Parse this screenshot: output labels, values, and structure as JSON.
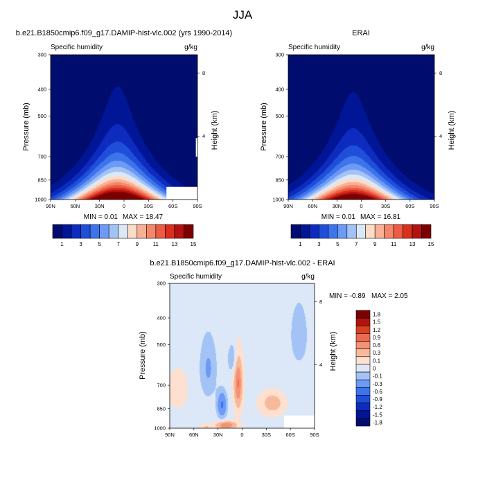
{
  "figure": {
    "title": "JJA",
    "tick_labels": {
      "lat": [
        "90N",
        "60N",
        "30N",
        "0",
        "30S",
        "60S",
        "90S"
      ],
      "pressure": [
        "300",
        "400",
        "500",
        "700",
        "850",
        "1000"
      ],
      "height": [
        "8",
        "4"
      ]
    },
    "colors": {
      "seq_colorbar": [
        "#000c6e",
        "#001696",
        "#0d2bbe",
        "#1f4fd9",
        "#3d74ec",
        "#6c9af4",
        "#a3c3f7",
        "#dce8f7",
        "#fbdcc8",
        "#f8b196",
        "#f4876a",
        "#ec5c42",
        "#d9301e",
        "#b21310",
        "#7d0000"
      ],
      "div_colorbar": [
        "#000c6e",
        "#001696",
        "#0d2bbe",
        "#1f4fd9",
        "#3d74ec",
        "#6c9af4",
        "#a3c3f7",
        "#dce8f7",
        "#fde0cf",
        "#f8b99b",
        "#f49176",
        "#ec6a4e",
        "#d9401f",
        "#b21310",
        "#7d0000"
      ]
    }
  },
  "chart_data": [
    {
      "type": "heatmap",
      "name": "model",
      "title": "b.e21.B1850cmip6.f09_g17.DAMIP-hist-vlc.002 (yrs 1990-2014)",
      "variable": "Specific humidity",
      "units": "g/kg",
      "xlabel": "",
      "ylabel": "Pressure (mb)",
      "y2label": "Height (km)",
      "xlim": [
        90,
        -90
      ],
      "ylim": [
        1000,
        300
      ],
      "min_label": "MIN =   0.01",
      "max_label": "MAX =  18.47",
      "min": 0.01,
      "max": 18.47,
      "peak_lat": 8,
      "peak_value": 18.47,
      "missing": [
        {
          "lat": [
            -52,
            -90
          ],
          "p": [
            1000,
            900
          ]
        },
        {
          "lat": [
            -88,
            -90
          ],
          "p": [
            700,
            600
          ]
        }
      ],
      "colorbar_labels": [
        "1",
        "3",
        "5",
        "7",
        "9",
        "11",
        "13",
        "15"
      ],
      "colorbar_levels": [
        1,
        2,
        3,
        4,
        5,
        6,
        7,
        8,
        9,
        10,
        11,
        12,
        13,
        14,
        15
      ]
    },
    {
      "type": "heatmap",
      "name": "obs",
      "title": "ERAI",
      "variable": "Specific humidity",
      "units": "g/kg",
      "xlabel": "",
      "ylabel": "Pressure (mb)",
      "y2label": "Height (km)",
      "xlim": [
        90,
        -90
      ],
      "ylim": [
        1000,
        300
      ],
      "min_label": "MIN =   0.01",
      "max_label": "MAX =  16.81",
      "min": 0.01,
      "max": 16.81,
      "peak_lat": 10,
      "peak_value": 16.81,
      "missing": [],
      "colorbar_labels": [
        "1",
        "3",
        "5",
        "7",
        "9",
        "11",
        "13",
        "15"
      ],
      "colorbar_levels": [
        1,
        2,
        3,
        4,
        5,
        6,
        7,
        8,
        9,
        10,
        11,
        12,
        13,
        14,
        15
      ]
    },
    {
      "type": "heatmap",
      "name": "diff",
      "title": "b.e21.B1850cmip6.f09_g17.DAMIP-hist-vlc.002 - ERAI",
      "variable": "Specific humidity",
      "units": "g/kg",
      "xlabel": "",
      "ylabel": "Pressure (mb)",
      "y2label": "Height (km)",
      "xlim": [
        90,
        -90
      ],
      "ylim": [
        1000,
        300
      ],
      "min_label": "MIN =  -0.89",
      "max_label": "MAX =   2.05",
      "min": -0.89,
      "max": 2.05,
      "missing": [
        {
          "lat": [
            -52,
            -90
          ],
          "p": [
            1000,
            900
          ]
        }
      ],
      "colorbar_labels": [
        "1.8",
        "1.5",
        "1.2",
        "0.9",
        "0.6",
        "0.3",
        "0.1",
        "0",
        "-0.1",
        "-0.3",
        "-0.6",
        "-0.9",
        "-1.2",
        "-1.5",
        "-1.8"
      ],
      "colorbar_levels": [
        -1.8,
        -1.5,
        -1.2,
        -0.9,
        -0.6,
        -0.3,
        -0.1,
        0,
        0.1,
        0.3,
        0.6,
        0.9,
        1.2,
        1.5,
        1.8
      ]
    }
  ]
}
